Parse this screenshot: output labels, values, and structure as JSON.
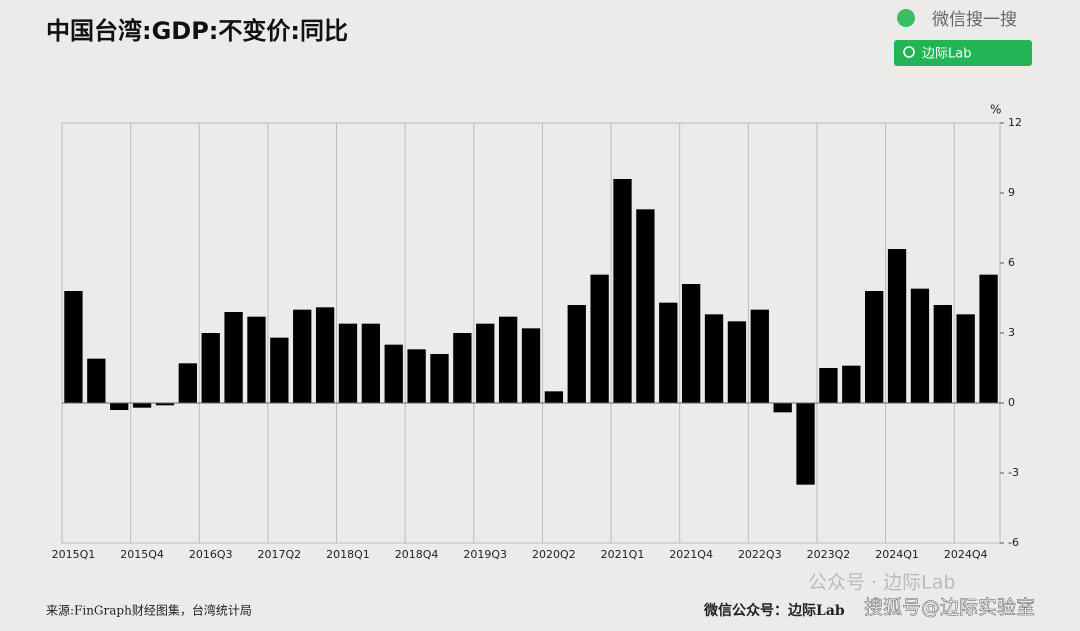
{
  "chart_data": {
    "type": "bar",
    "title": "中国台湾:GDP:不变价:同比",
    "y_unit": "%",
    "source": "来源:FinGraph财经图集，台湾统计局",
    "footer_right": "微信公众号：边际Lab",
    "watermarks": {
      "search": "微信搜一搜",
      "search_box": "边际Lab",
      "account": "公众号 · 边际Lab",
      "sohu": "搜狐号@边际实验室"
    },
    "categories": [
      "2015Q1",
      null,
      null,
      "2015Q4",
      null,
      null,
      "2016Q3",
      null,
      null,
      "2017Q2",
      null,
      null,
      "2018Q1",
      null,
      null,
      "2018Q4",
      null,
      null,
      "2019Q3",
      null,
      null,
      "2020Q2",
      null,
      null,
      "2021Q1",
      null,
      null,
      "2021Q4",
      null,
      null,
      "2022Q3",
      null,
      null,
      "2023Q2",
      null,
      null,
      "2024Q1",
      null,
      null,
      "2024Q4",
      null
    ],
    "values": [
      4.8,
      1.9,
      -0.3,
      -0.2,
      -0.1,
      1.7,
      3.0,
      3.9,
      3.7,
      2.8,
      4.0,
      4.1,
      3.4,
      3.4,
      2.5,
      2.3,
      2.1,
      3.0,
      3.4,
      3.7,
      3.2,
      0.5,
      4.2,
      5.5,
      9.6,
      8.3,
      4.3,
      5.1,
      3.8,
      3.5,
      4.0,
      -0.4,
      -3.5,
      1.5,
      1.6,
      4.8,
      6.6,
      4.9,
      4.2,
      3.8,
      5.5
    ],
    "color": "#000000",
    "ylim": [
      -6,
      12
    ],
    "yticks": [
      -6,
      -3,
      0,
      3,
      6,
      9,
      12
    ],
    "y_axis_side": "right",
    "grid": "x"
  }
}
